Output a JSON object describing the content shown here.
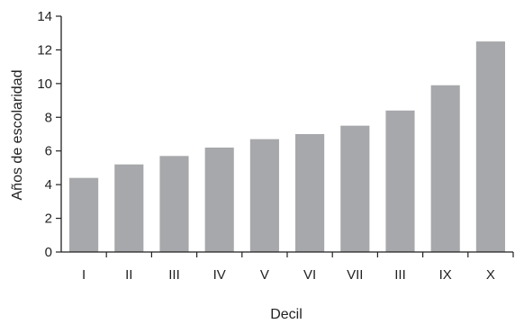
{
  "chart_data": {
    "type": "bar",
    "categories": [
      "I",
      "II",
      "III",
      "IV",
      "V",
      "VI",
      "VII",
      "III",
      "IX",
      "X"
    ],
    "values": [
      4.4,
      5.2,
      5.7,
      6.2,
      6.7,
      7.0,
      7.5,
      8.4,
      9.9,
      12.5
    ],
    "title": "",
    "xlabel": "Decil",
    "ylabel": "Años de escolaridad",
    "ylim": [
      0,
      14
    ],
    "yticks": [
      0,
      2,
      4,
      6,
      8,
      10,
      12,
      14
    ],
    "bar_color": "#a7a8ab",
    "axis_color": "#222222",
    "grid": false
  }
}
